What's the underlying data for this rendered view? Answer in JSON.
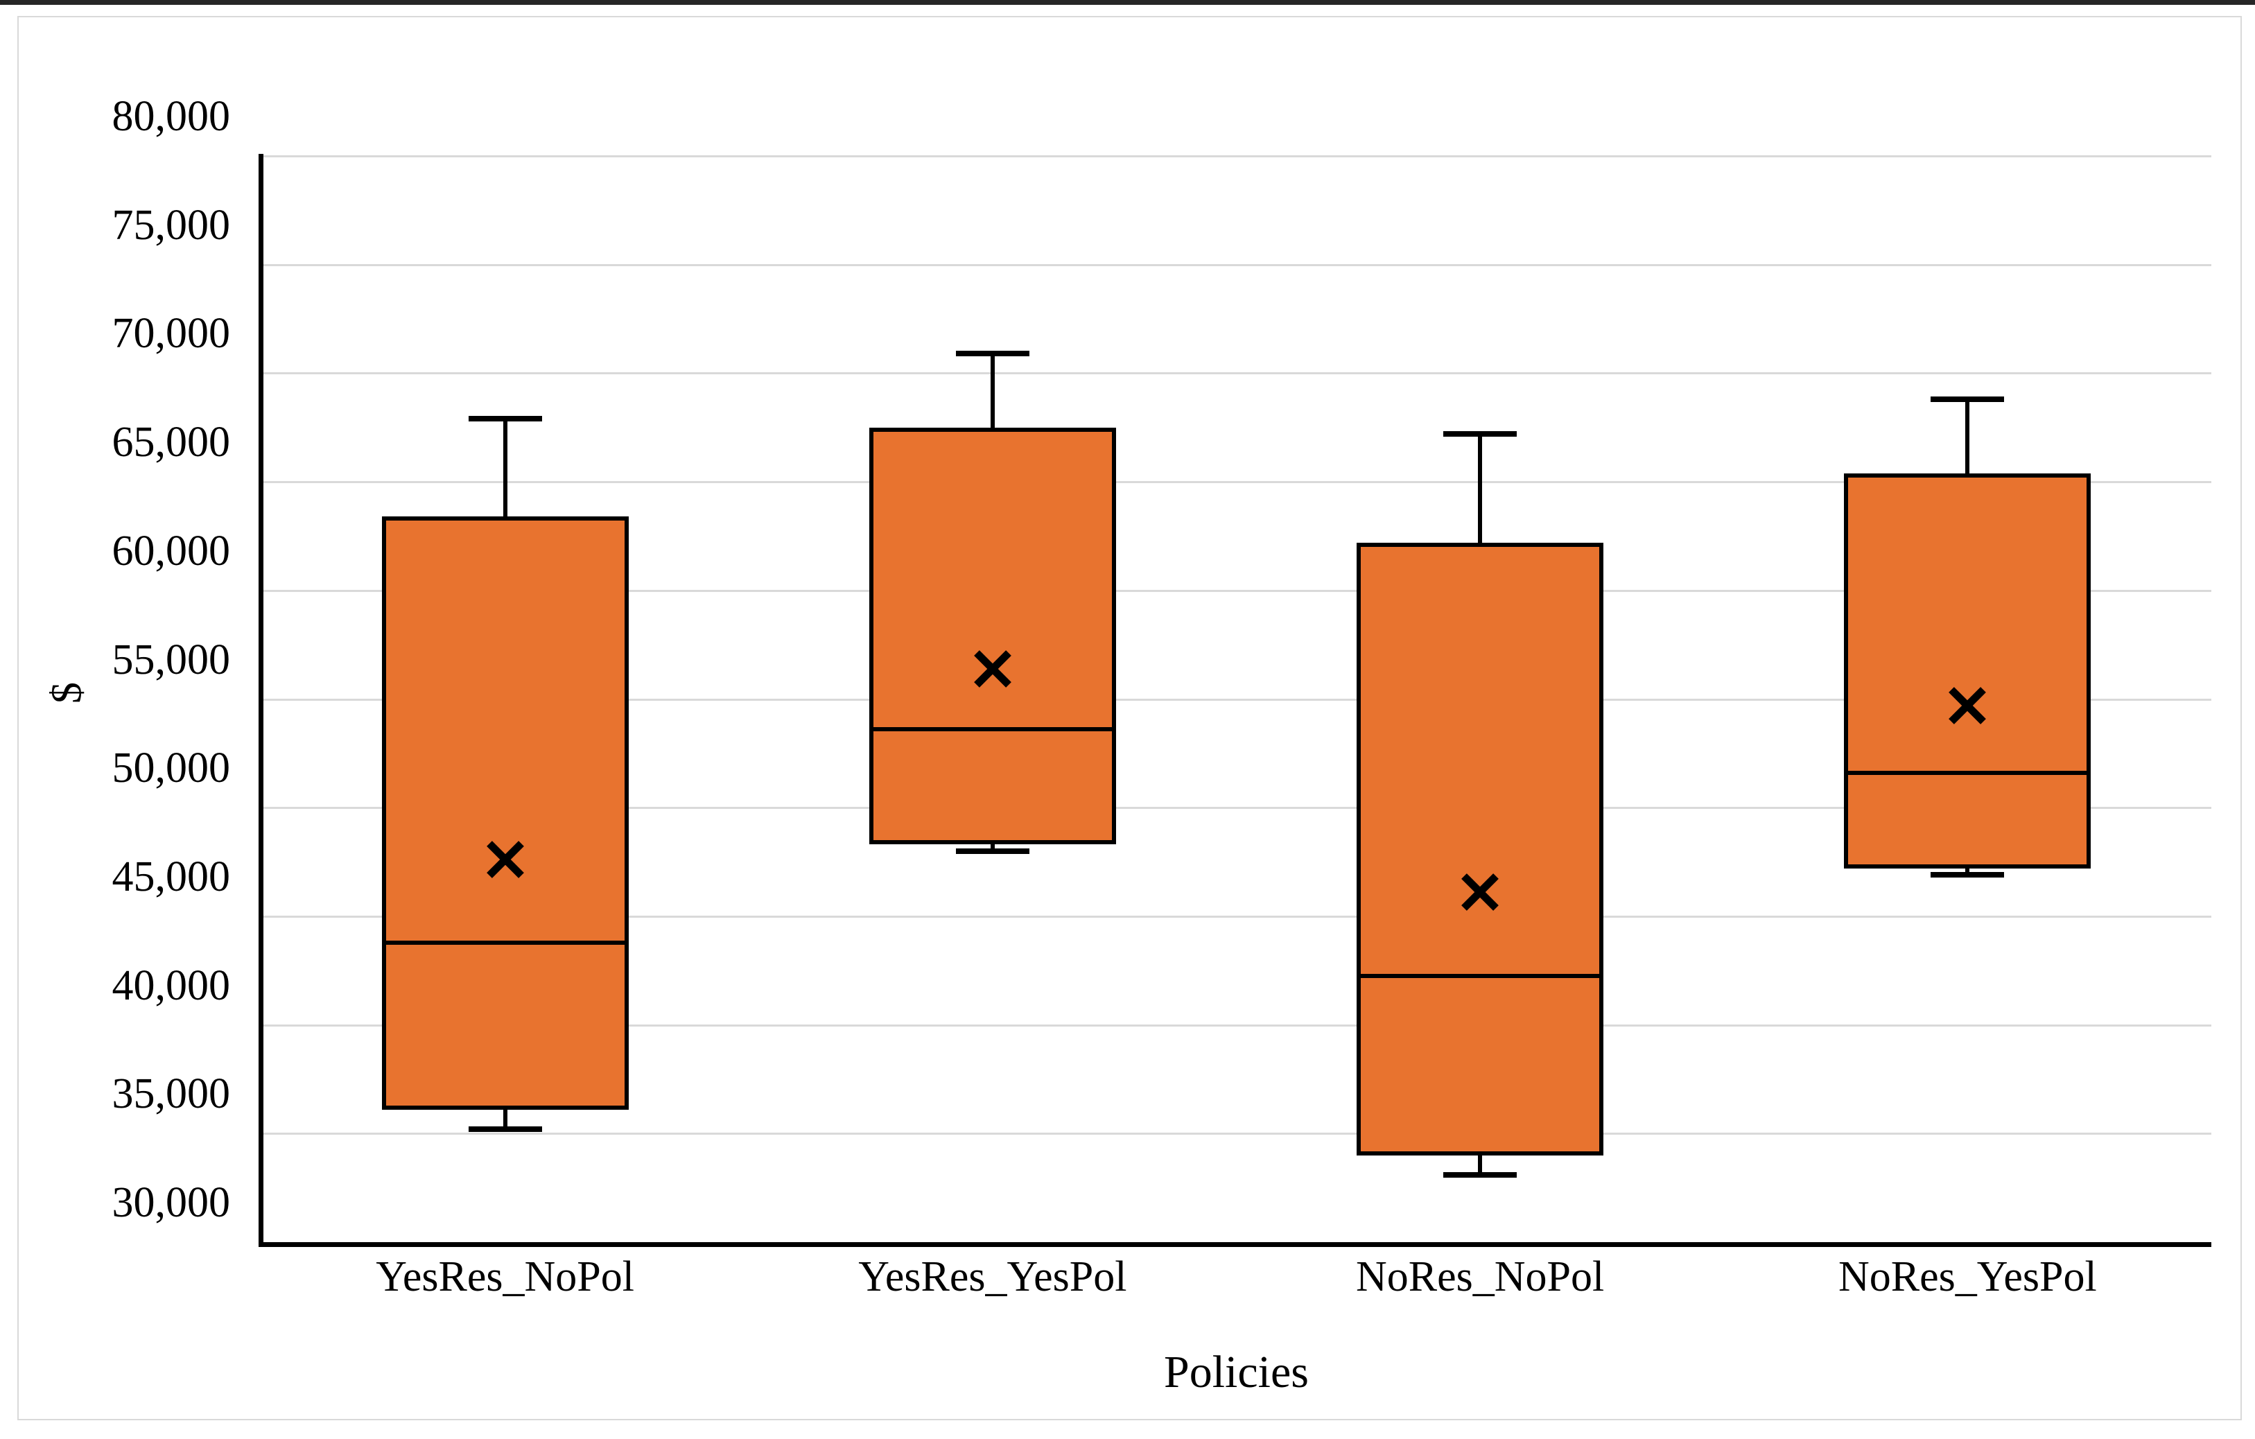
{
  "window": {
    "top_strip_color": "#262626"
  },
  "chart_data": {
    "type": "box",
    "title": "",
    "xlabel": "Policies",
    "ylabel": "$",
    "ylim": [
      30000,
      80000
    ],
    "ytick_step": 5000,
    "ytick_labels": [
      "30,000",
      "35,000",
      "40,000",
      "45,000",
      "50,000",
      "55,000",
      "60,000",
      "65,000",
      "70,000",
      "75,000",
      "80,000"
    ],
    "grid": "horizontal-only",
    "legend_position": "none",
    "categories": [
      "YesRes_NoPol",
      "YesRes_YesPol",
      "NoRes_NoPol",
      "NoRes_YesPol"
    ],
    "series": [
      {
        "name": "YesRes_NoPol",
        "min": 35200,
        "q1": 36100,
        "median": 43800,
        "mean": 47600,
        "q3": 63400,
        "max": 67900
      },
      {
        "name": "YesRes_YesPol",
        "min": 48000,
        "q1": 48300,
        "median": 53600,
        "mean": 56400,
        "q3": 67500,
        "max": 70900
      },
      {
        "name": "NoRes_NoPol",
        "min": 33100,
        "q1": 34000,
        "median": 42250,
        "mean": 46100,
        "q3": 62200,
        "max": 67200
      },
      {
        "name": "NoRes_YesPol",
        "min": 46900,
        "q1": 47200,
        "median": 51600,
        "mean": 54700,
        "q3": 65400,
        "max": 68800
      }
    ],
    "colors": {
      "box_fill": "#E8732F",
      "box_border": "#000000",
      "whisker": "#000000",
      "median": "#000000",
      "mean_marker": "#000000",
      "gridline": "#D9D9D9",
      "axis": "#000000",
      "chart_border": "#D9D9D9",
      "background": "#FFFFFF"
    }
  }
}
